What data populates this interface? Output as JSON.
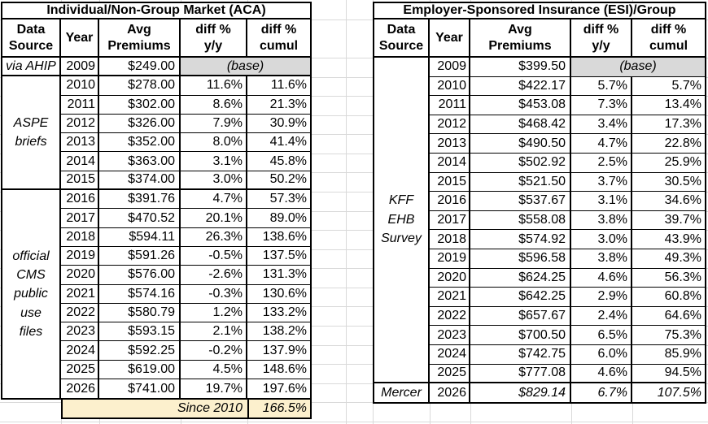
{
  "colors": {
    "gridline": "#D9D9D9",
    "base_cell_bg": "#D9D9D9",
    "footer_bg": "#FCF0CD",
    "border": "#000000"
  },
  "left_table": {
    "title": "Individual/Non-Group Market (ACA)",
    "headers": {
      "source": "Data\nSource",
      "year": "Year",
      "premium": "Avg\nPremiums",
      "yy": "diff %\ny/y",
      "cumul": "diff %\ncumul"
    },
    "base_label": "(base)",
    "sources": [
      {
        "label": "via AHIP",
        "start": 0,
        "span": 1,
        "thick": true
      },
      {
        "label": "ASPE\nbriefs",
        "start": 1,
        "span": 6,
        "thick": true
      },
      {
        "label": "official\nCMS\npublic\nuse\nfiles",
        "start": 7,
        "span": 11,
        "thick": false
      }
    ],
    "thick_after": [
      0,
      6
    ],
    "rows": [
      {
        "year": "2009",
        "premium": "$249.00",
        "base": true
      },
      {
        "year": "2010",
        "premium": "$278.00",
        "yy": "11.6%",
        "cumul": "11.6%"
      },
      {
        "year": "2011",
        "premium": "$302.00",
        "yy": "8.6%",
        "cumul": "21.3%"
      },
      {
        "year": "2012",
        "premium": "$326.00",
        "yy": "7.9%",
        "cumul": "30.9%"
      },
      {
        "year": "2013",
        "premium": "$352.00",
        "yy": "8.0%",
        "cumul": "41.4%"
      },
      {
        "year": "2014",
        "premium": "$363.00",
        "yy": "3.1%",
        "cumul": "45.8%"
      },
      {
        "year": "2015",
        "premium": "$374.00",
        "yy": "3.0%",
        "cumul": "50.2%"
      },
      {
        "year": "2016",
        "premium": "$391.76",
        "yy": "4.7%",
        "cumul": "57.3%"
      },
      {
        "year": "2017",
        "premium": "$470.52",
        "yy": "20.1%",
        "cumul": "89.0%"
      },
      {
        "year": "2018",
        "premium": "$594.11",
        "yy": "26.3%",
        "cumul": "138.6%"
      },
      {
        "year": "2019",
        "premium": "$591.26",
        "yy": "-0.5%",
        "cumul": "137.5%"
      },
      {
        "year": "2020",
        "premium": "$576.00",
        "yy": "-2.6%",
        "cumul": "131.3%"
      },
      {
        "year": "2021",
        "premium": "$574.16",
        "yy": "-0.3%",
        "cumul": "130.6%"
      },
      {
        "year": "2022",
        "premium": "$580.79",
        "yy": "1.2%",
        "cumul": "133.2%"
      },
      {
        "year": "2023",
        "premium": "$593.15",
        "yy": "2.1%",
        "cumul": "138.2%"
      },
      {
        "year": "2024",
        "premium": "$592.25",
        "yy": "-0.2%",
        "cumul": "137.9%"
      },
      {
        "year": "2025",
        "premium": "$619.00",
        "yy": "4.5%",
        "cumul": "148.6%"
      },
      {
        "year": "2026",
        "premium": "$741.00",
        "yy": "19.7%",
        "cumul": "197.6%"
      }
    ],
    "footer": {
      "label": "Since 2010",
      "value": "166.5%"
    }
  },
  "right_table": {
    "title": "Employer-Sponsored Insurance (ESI)/Group",
    "headers": {
      "source": "Data\nSource",
      "year": "Year",
      "premium": "Avg\nPremiums",
      "yy": "diff %\ny/y",
      "cumul": "diff %\ncumul"
    },
    "base_label": "(base)",
    "sources": [
      {
        "label": "KFF\nEHB\nSurvey",
        "start": 0,
        "span": 17,
        "thick": true
      },
      {
        "label": "Mercer",
        "start": 17,
        "span": 1,
        "thick": false
      }
    ],
    "thick_after": [
      16
    ],
    "rows": [
      {
        "year": "2009",
        "premium": "$399.50",
        "base": true
      },
      {
        "year": "2010",
        "premium": "$422.17",
        "yy": "5.7%",
        "cumul": "5.7%"
      },
      {
        "year": "2011",
        "premium": "$453.08",
        "yy": "7.3%",
        "cumul": "13.4%"
      },
      {
        "year": "2012",
        "premium": "$468.42",
        "yy": "3.4%",
        "cumul": "17.3%"
      },
      {
        "year": "2013",
        "premium": "$490.50",
        "yy": "4.7%",
        "cumul": "22.8%"
      },
      {
        "year": "2014",
        "premium": "$502.92",
        "yy": "2.5%",
        "cumul": "25.9%"
      },
      {
        "year": "2015",
        "premium": "$521.50",
        "yy": "3.7%",
        "cumul": "30.5%"
      },
      {
        "year": "2016",
        "premium": "$537.67",
        "yy": "3.1%",
        "cumul": "34.6%"
      },
      {
        "year": "2017",
        "premium": "$558.08",
        "yy": "3.8%",
        "cumul": "39.7%"
      },
      {
        "year": "2018",
        "premium": "$574.92",
        "yy": "3.0%",
        "cumul": "43.9%"
      },
      {
        "year": "2019",
        "premium": "$596.58",
        "yy": "3.8%",
        "cumul": "49.3%"
      },
      {
        "year": "2020",
        "premium": "$624.25",
        "yy": "4.6%",
        "cumul": "56.3%"
      },
      {
        "year": "2021",
        "premium": "$642.25",
        "yy": "2.9%",
        "cumul": "60.8%"
      },
      {
        "year": "2022",
        "premium": "$657.67",
        "yy": "2.4%",
        "cumul": "64.6%"
      },
      {
        "year": "2023",
        "premium": "$700.50",
        "yy": "6.5%",
        "cumul": "75.3%"
      },
      {
        "year": "2024",
        "premium": "$742.75",
        "yy": "6.0%",
        "cumul": "85.9%"
      },
      {
        "year": "2025",
        "premium": "$777.08",
        "yy": "4.6%",
        "cumul": "94.5%"
      },
      {
        "year": "2026",
        "premium": "$829.14",
        "yy": "6.7%",
        "cumul": "107.5%",
        "italic": true
      }
    ]
  }
}
